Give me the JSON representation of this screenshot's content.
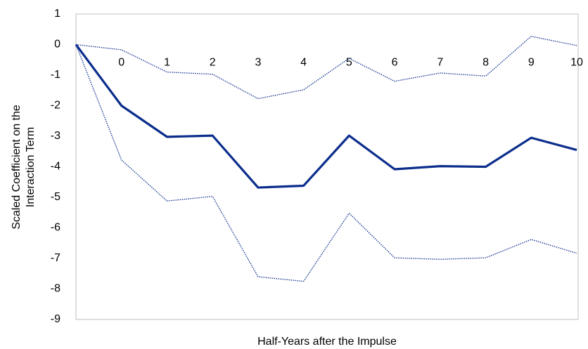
{
  "chart_data": {
    "type": "line",
    "y_label": [
      "Scaled Coefficient on the",
      "Interaction Term"
    ],
    "x_label": "Half-Years after the Impulse",
    "categories": [
      null,
      "0",
      "1",
      "2",
      "3",
      "4",
      "5",
      "6",
      "7",
      "8",
      "9",
      "10"
    ],
    "series": [
      {
        "color": "#0b2d8c",
        "style": "solid",
        "values": [
          0,
          -2.0,
          -3.02,
          -2.98,
          -4.68,
          -4.62,
          -2.98,
          -4.08,
          -3.98,
          -4.0,
          -3.05,
          -3.45
        ]
      },
      {
        "color": "#0b2d8c",
        "style": "dotted",
        "values": [
          0,
          -0.17,
          -0.9,
          -0.97,
          -1.77,
          -1.48,
          -0.45,
          -1.2,
          -0.93,
          -1.03,
          0.27,
          -0.03
        ]
      },
      {
        "color": "#0b2d8c",
        "style": "dotted",
        "values": [
          0,
          -3.78,
          -5.12,
          -4.97,
          -7.6,
          -7.75,
          -5.52,
          -6.98,
          -7.03,
          -6.98,
          -6.38,
          -6.83
        ]
      }
    ],
    "ylim": [
      -9,
      1
    ],
    "yticks": [
      -9,
      -8,
      -7,
      -6,
      -5,
      -4,
      -3,
      -2,
      -1,
      0,
      1
    ],
    "grid": false
  }
}
